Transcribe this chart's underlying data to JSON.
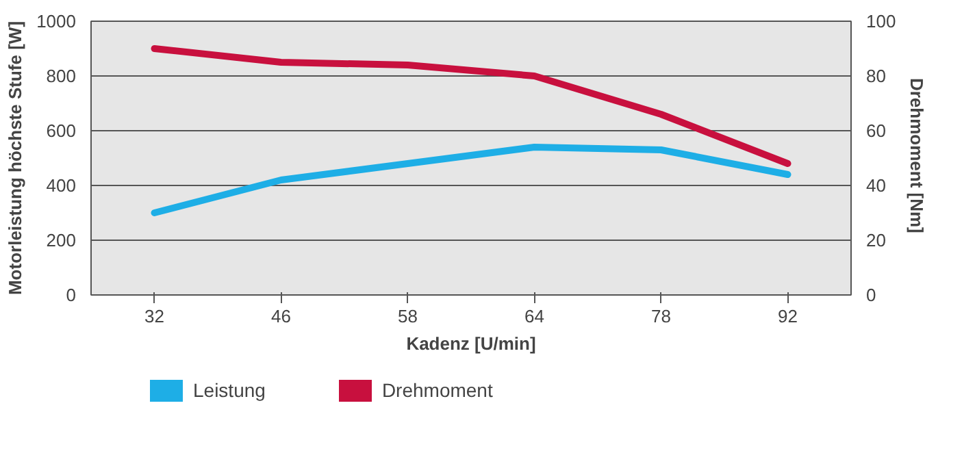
{
  "chart_data": {
    "type": "line",
    "xlabel": "Kadenz [U/min]",
    "ylabel": "Motorleistung höchste Stufe [W]",
    "y2label": "Drehmoment  [Nm]",
    "categories": [
      "32",
      "46",
      "58",
      "64",
      "78",
      "92"
    ],
    "ylim": [
      0,
      1000
    ],
    "yticks": [
      0,
      200,
      400,
      600,
      800,
      1000
    ],
    "y2lim": [
      0,
      100
    ],
    "y2ticks": [
      0,
      20,
      40,
      60,
      80,
      100
    ],
    "grid": "y",
    "legend": "bottom",
    "series": [
      {
        "name": "Leistung",
        "color": "#1eaee6",
        "values": [
          300,
          420,
          480,
          540,
          530,
          440
        ]
      },
      {
        "name": "Drehmoment",
        "color": "#c8103e",
        "axis": "y2",
        "values": [
          90,
          85,
          84,
          80,
          66,
          48
        ]
      }
    ]
  }
}
